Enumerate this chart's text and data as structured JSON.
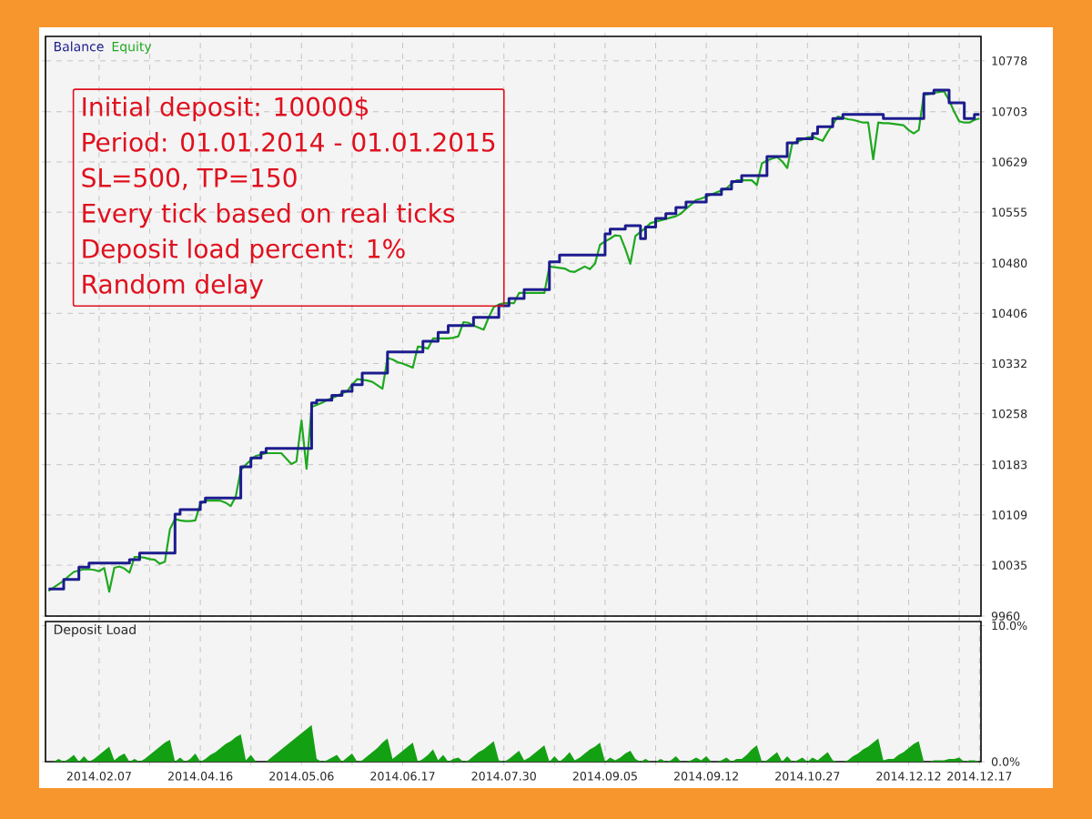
{
  "chart_data": [
    {
      "type": "line",
      "legend": "top left",
      "grid": true,
      "tick_labels": "y",
      "ylim": [
        9960,
        10814
      ],
      "categories": [
        null,
        null,
        null,
        null,
        null,
        null,
        null,
        null,
        null,
        null,
        null,
        null,
        null,
        null,
        null,
        null,
        null,
        null,
        null,
        null,
        null,
        null,
        null,
        null,
        null,
        null,
        null,
        null,
        null,
        null,
        null,
        null,
        null,
        null,
        null,
        null,
        null,
        null,
        null,
        null,
        null,
        null,
        null,
        null,
        null,
        null,
        null,
        null,
        null,
        null,
        null,
        null,
        null,
        null,
        null,
        null,
        null,
        null,
        null,
        null,
        null,
        null,
        null,
        null,
        null,
        null,
        null,
        null,
        null,
        null,
        null,
        null,
        null,
        null,
        null,
        null,
        null,
        null,
        null,
        null,
        null,
        null,
        null,
        null,
        null,
        null,
        null,
        null,
        null,
        null,
        null,
        null,
        null,
        null,
        null,
        null,
        null,
        null,
        null,
        null,
        null,
        null,
        null,
        null,
        null,
        null,
        null,
        null,
        null,
        null,
        null,
        null,
        null,
        null,
        null,
        null,
        null,
        null,
        null,
        null,
        null,
        null,
        null,
        null,
        null,
        null,
        null,
        null,
        null,
        null,
        null,
        null,
        null,
        null,
        null,
        null,
        null,
        null,
        null,
        null,
        null,
        null,
        null,
        null,
        null,
        null,
        null,
        null,
        null,
        null,
        null,
        null,
        null,
        null,
        null,
        null,
        null,
        null,
        null,
        null,
        null,
        null,
        null,
        null,
        null,
        null,
        null,
        null,
        null,
        null,
        null,
        null,
        null,
        null,
        null,
        null,
        null,
        null,
        null,
        null,
        null,
        null,
        null,
        null,
        null
      ],
      "yticks": [
        9960,
        10035,
        10109,
        10183,
        10258,
        10332,
        10406,
        10480,
        10555,
        10629,
        10703,
        10778
      ],
      "annotations": [
        "Initial deposit: 10000$",
        "Period: 01.01.2014 - 01.01.2015",
        "SL=500, TP=150",
        "Every tick based on real ticks",
        "Deposit load percent: 1%",
        "Random delay"
      ],
      "series": [
        {
          "name": "Balance",
          "type": "step",
          "color": "#1c1c8e",
          "values": [
            10000,
            10000,
            10000,
            10014,
            10014,
            10014,
            10032,
            10032,
            10038,
            10038,
            10038,
            10038,
            10038,
            10038,
            10038,
            10038,
            10043,
            10043,
            10053,
            10053,
            10053,
            10053,
            10053,
            10053,
            10053,
            10110,
            10117,
            10117,
            10117,
            10117,
            10128,
            10134,
            10134,
            10134,
            10134,
            10134,
            10134,
            10134,
            10180,
            10180,
            10193,
            10193,
            10201,
            10207,
            10207,
            10207,
            10207,
            10207,
            10207,
            10207,
            10207,
            10207,
            10274,
            10278,
            10278,
            10278,
            10285,
            10285,
            10291,
            10291,
            10301,
            10301,
            10318,
            10318,
            10318,
            10318,
            10318,
            10349,
            10349,
            10349,
            10349,
            10349,
            10349,
            10349,
            10365,
            10365,
            10365,
            10378,
            10378,
            10388,
            10388,
            10388,
            10388,
            10388,
            10400,
            10400,
            10400,
            10400,
            10400,
            10417,
            10417,
            10428,
            10428,
            10428,
            10441,
            10441,
            10441,
            10441,
            10441,
            10482,
            10482,
            10492,
            10492,
            10492,
            10492,
            10492,
            10492,
            10492,
            10492,
            10492,
            10523,
            10530,
            10530,
            10530,
            10535,
            10535,
            10535,
            10516,
            10533,
            10533,
            10546,
            10546,
            10553,
            10553,
            10562,
            10562,
            10570,
            10570,
            10570,
            10570,
            10581,
            10581,
            10581,
            10589,
            10589,
            10600,
            10600,
            10609,
            10609,
            10609,
            10609,
            10609,
            10637,
            10637,
            10637,
            10637,
            10657,
            10657,
            10663,
            10663,
            10663,
            10671,
            10681,
            10681,
            10681,
            10693,
            10693,
            10699,
            10699,
            10699,
            10699,
            10699,
            10699,
            10699,
            10699,
            10693,
            10693,
            10693,
            10693,
            10693,
            10693,
            10693,
            10693,
            10730,
            10730,
            10735,
            10735,
            10735,
            10716,
            10716,
            10716,
            10693,
            10693,
            10699,
            10699
          ]
        },
        {
          "name": "Equity",
          "color": "#1fa81f",
          "values": [
            9997,
            10002,
            10007,
            10012,
            10019,
            10025,
            10027,
            10029,
            10029,
            10028,
            10026,
            10031,
            9996,
            10031,
            10033,
            10030,
            10024,
            10047,
            10047,
            10046,
            10044,
            10043,
            10037,
            10040,
            10088,
            10103,
            10101,
            10100,
            10100,
            10101,
            10125,
            10130,
            10130,
            10130,
            10130,
            10127,
            10122,
            10136,
            10175,
            10183,
            10190,
            10196,
            10198,
            10200,
            10200,
            10200,
            10200,
            10192,
            10184,
            10188,
            10248,
            10177,
            10268,
            10271,
            10274,
            10278,
            10281,
            10284,
            10288,
            10291,
            10301,
            10309,
            10308,
            10307,
            10305,
            10300,
            10295,
            10340,
            10338,
            10334,
            10332,
            10329,
            10326,
            10357,
            10356,
            10354,
            10369,
            10369,
            10369,
            10369,
            10370,
            10372,
            10393,
            10392,
            10388,
            10385,
            10382,
            10400,
            10415,
            10419,
            10421,
            10421,
            10421,
            10436,
            10436,
            10436,
            10436,
            10436,
            10436,
            10475,
            10474,
            10473,
            10472,
            10468,
            10467,
            10471,
            10475,
            10471,
            10479,
            10507,
            10512,
            10516,
            10521,
            10520,
            10501,
            10479,
            10520,
            10526,
            10532,
            10539,
            10541,
            10543,
            10545,
            10547,
            10549,
            10553,
            10560,
            10566,
            10573,
            10575,
            10578,
            10581,
            10584,
            10587,
            10590,
            10597,
            10602,
            10602,
            10602,
            10602,
            10595,
            10627,
            10631,
            10634,
            10636,
            10630,
            10620,
            10656,
            10659,
            10662,
            10665,
            10666,
            10663,
            10660,
            10673,
            10684,
            10696,
            10694,
            10692,
            10691,
            10689,
            10687,
            10687,
            10633,
            10687,
            10686,
            10686,
            10685,
            10684,
            10683,
            10676,
            10671,
            10676,
            10728,
            10729,
            10731,
            10732,
            10733,
            10720,
            10703,
            10689,
            10687,
            10687,
            10691,
            10693
          ]
        }
      ]
    },
    {
      "type": "area",
      "title": "Deposit Load",
      "grid": "x",
      "ylim": [
        0,
        10.3
      ],
      "categories": [
        null,
        null,
        null,
        null,
        null,
        null,
        null,
        null,
        null,
        null,
        "2014.02.07",
        null,
        null,
        null,
        null,
        null,
        null,
        null,
        null,
        null,
        null,
        null,
        null,
        null,
        null,
        null,
        null,
        null,
        null,
        null,
        "2014.04.16",
        null,
        null,
        null,
        null,
        null,
        null,
        null,
        null,
        null,
        null,
        null,
        null,
        null,
        null,
        null,
        null,
        null,
        null,
        null,
        "2014.05.06",
        null,
        null,
        null,
        null,
        null,
        null,
        null,
        null,
        null,
        null,
        null,
        null,
        null,
        null,
        null,
        null,
        null,
        null,
        null,
        "2014.06.17",
        null,
        null,
        null,
        null,
        null,
        null,
        null,
        null,
        null,
        null,
        null,
        null,
        null,
        null,
        null,
        null,
        null,
        null,
        null,
        "2014.07.30",
        null,
        null,
        null,
        null,
        null,
        null,
        null,
        null,
        null,
        null,
        null,
        null,
        null,
        null,
        null,
        null,
        null,
        null,
        null,
        "2014.09.05",
        null,
        null,
        null,
        null,
        null,
        null,
        null,
        null,
        null,
        null,
        null,
        null,
        null,
        null,
        null,
        null,
        null,
        null,
        null,
        "2014.09.12",
        null,
        null,
        null,
        null,
        null,
        null,
        null,
        null,
        null,
        null,
        null,
        null,
        null,
        null,
        null,
        null,
        null,
        null,
        null,
        "2014.10.27",
        null,
        null,
        null,
        null,
        null,
        null,
        null,
        null,
        null,
        null,
        null,
        null,
        null,
        null,
        null,
        null,
        null,
        null,
        null,
        "2014.12.12",
        null,
        null,
        null,
        null,
        null,
        null,
        null,
        null,
        null,
        null,
        null,
        null,
        null,
        "2014.12.17"
      ],
      "yticks": [
        {
          "value": 0,
          "label": "0.0%"
        },
        {
          "value": 10,
          "label": "10.0%"
        }
      ],
      "series": [
        {
          "color": "#13a013",
          "values": [
            0,
            0,
            0.2,
            0,
            0.2,
            0.5,
            0,
            0.4,
            0,
            0.2,
            0.5,
            0.8,
            1.1,
            0.1,
            0.4,
            0.6,
            0,
            0.2,
            0,
            0.2,
            0.5,
            0.8,
            1.1,
            1.4,
            1.6,
            0,
            0.3,
            0,
            0.2,
            0.6,
            0,
            0.2,
            0.5,
            0.7,
            1.0,
            1.3,
            1.5,
            1.8,
            2.0,
            0.1,
            0.5,
            0,
            0,
            0,
            0.3,
            0.6,
            0.9,
            1.2,
            1.5,
            1.8,
            2.1,
            2.4,
            2.7,
            0.2,
            0,
            0.1,
            0.3,
            0.5,
            0,
            0.3,
            0.6,
            0,
            0.1,
            0.4,
            0.7,
            1.0,
            1.4,
            1.7,
            0.2,
            0.5,
            0.8,
            1.1,
            1.4,
            0,
            0.2,
            0.5,
            0.9,
            0.1,
            0.5,
            0,
            0.2,
            0.3,
            0,
            0.1,
            0.4,
            0.7,
            0.9,
            1.2,
            1.5,
            0.1,
            0,
            0.2,
            0.5,
            0.8,
            0.1,
            0.3,
            0.6,
            0.9,
            1.2,
            0,
            0.4,
            0,
            0.3,
            0.7,
            0.1,
            0.3,
            0.6,
            0.9,
            1.1,
            1.4,
            0,
            0.3,
            0.1,
            0.3,
            0.6,
            0.8,
            0.2,
            0,
            0.2,
            0,
            0,
            0.2,
            0,
            0.1,
            0.4,
            0,
            0,
            0.1,
            0.3,
            0.1,
            0.4,
            0,
            0,
            0.1,
            0.3,
            0,
            0.2,
            0.2,
            0.5,
            0.9,
            1.2,
            0,
            0.1,
            0.4,
            0.7,
            0,
            0.4,
            0,
            0.1,
            0.3,
            0,
            0.3,
            0.1,
            0.4,
            0.7,
            0.1,
            0,
            0,
            0.1,
            0.4,
            0.6,
            0.9,
            1.1,
            1.4,
            1.7,
            0.1,
            0.2,
            0.2,
            0.5,
            0.7,
            1.0,
            1.3,
            1.5,
            0,
            0,
            0.1,
            0.1,
            0.1,
            0.2,
            0.2,
            0.3,
            0,
            0.1,
            0.1,
            0
          ]
        }
      ]
    }
  ]
}
